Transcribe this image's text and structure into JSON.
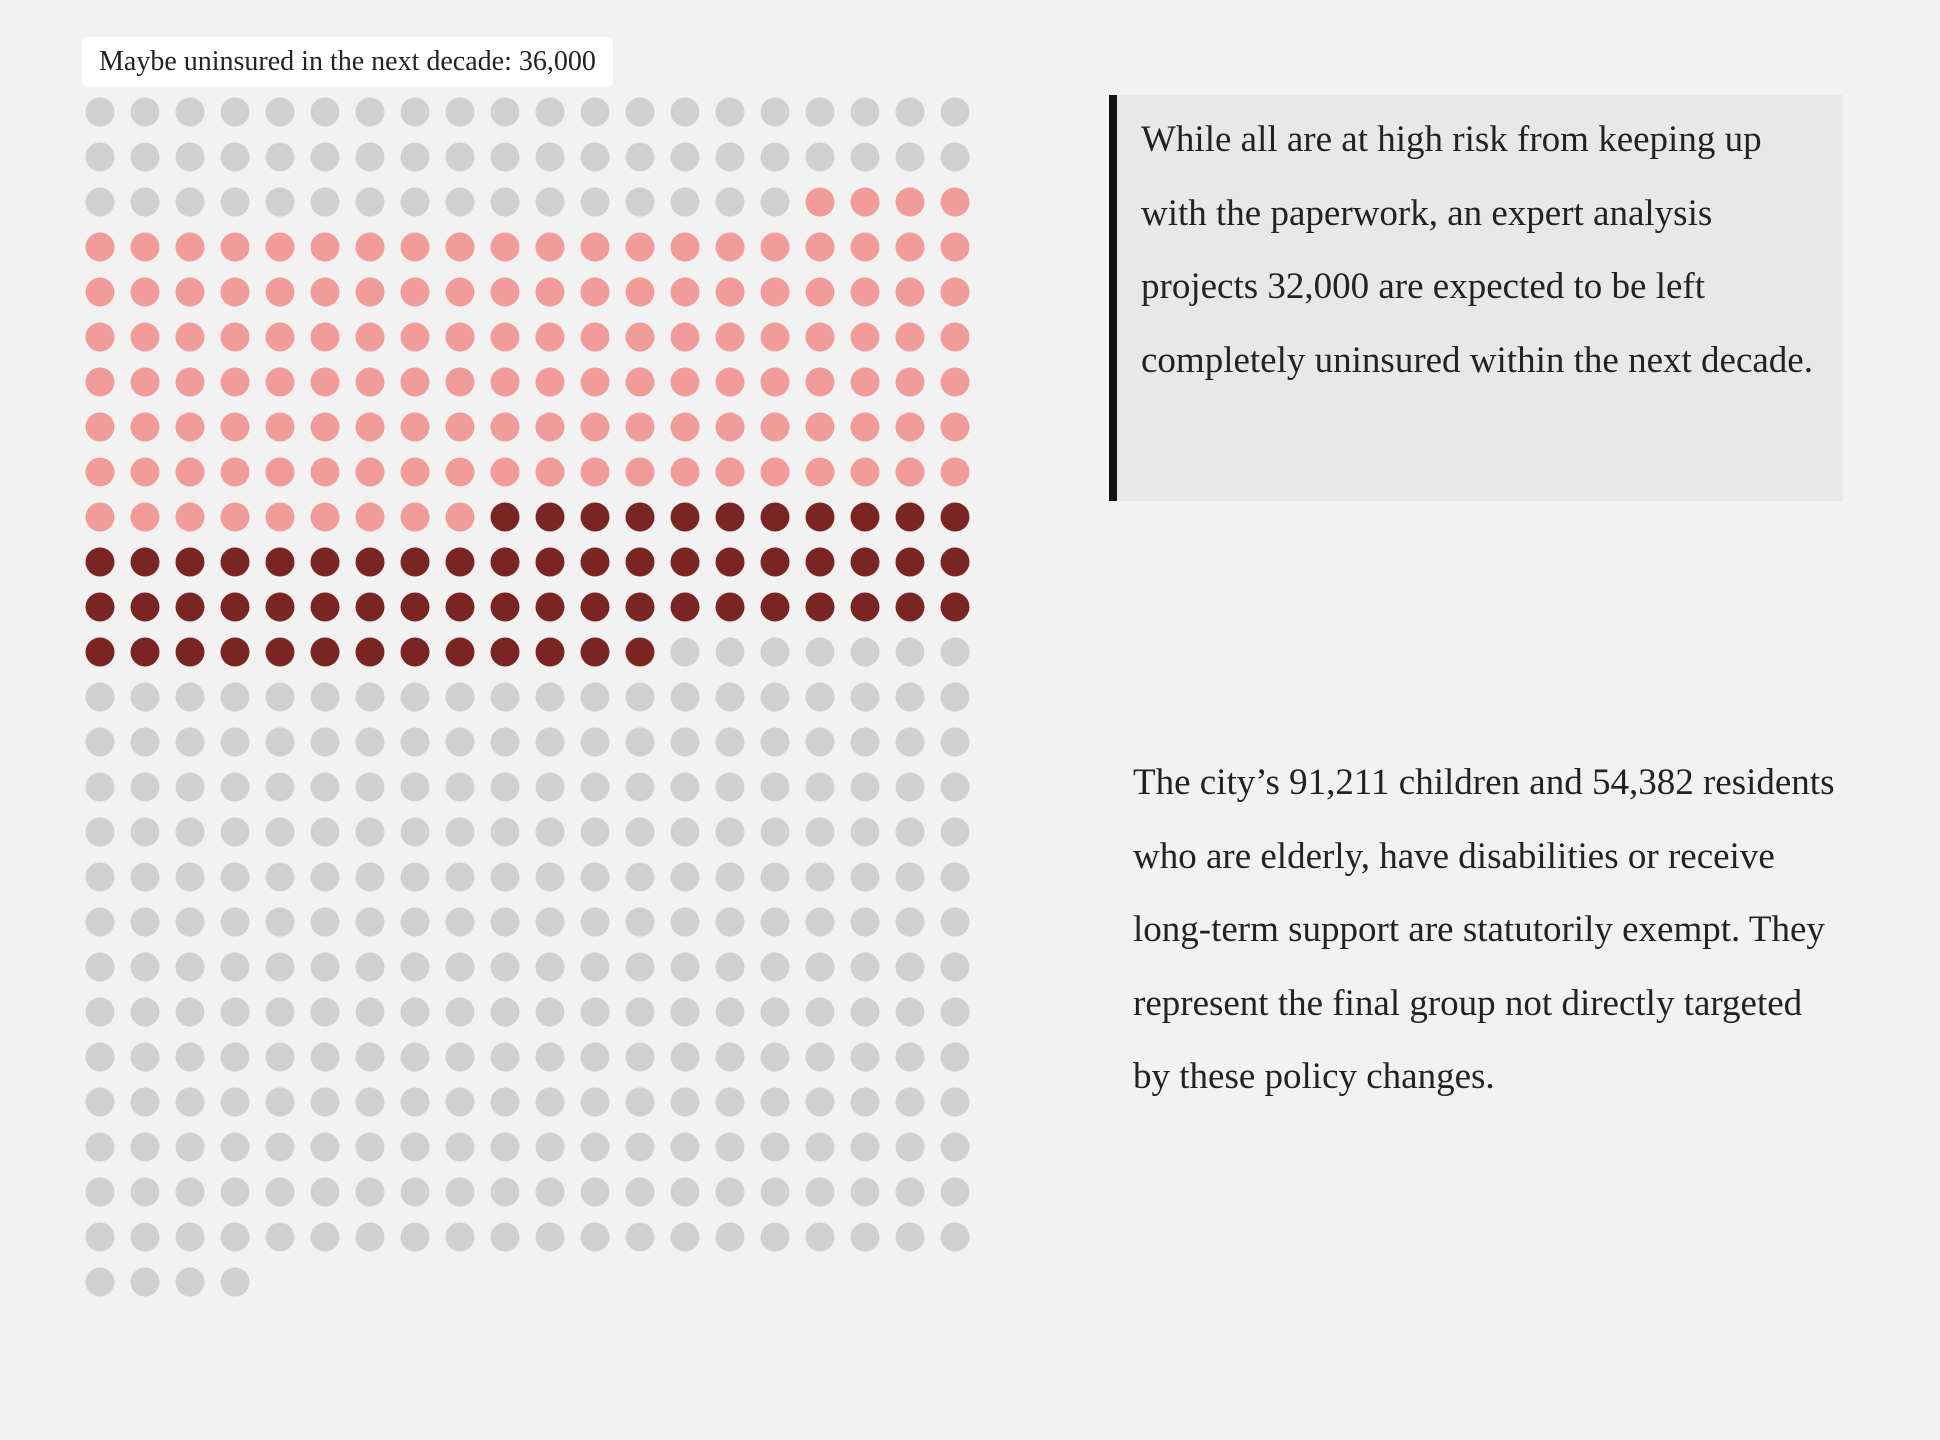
{
  "tooltip": {
    "text": "Maybe uninsured in the next decade: 36,000"
  },
  "callout": {
    "text": "While all are at high risk from keeping up with the paperwork, an expert analysis projects 32,000 are expected to be left completely uninsured within the next decade."
  },
  "paragraph": {
    "text": "The city’s 91,211 children and 54,382 residents who are elderly, have disabilities or receive long-term support are statutorily exempt. They represent the final group not directly targeted by these policy changes."
  },
  "chart_data": {
    "type": "waffle",
    "columns": 20,
    "total_dots": 524,
    "segments": [
      {
        "count": 56,
        "color": "#d0d0d0"
      },
      {
        "count": 133,
        "color": "#f19c98"
      },
      {
        "count": 64,
        "color": "#7a2522"
      },
      {
        "count": 271,
        "color": "#d0d0d0"
      }
    ]
  }
}
